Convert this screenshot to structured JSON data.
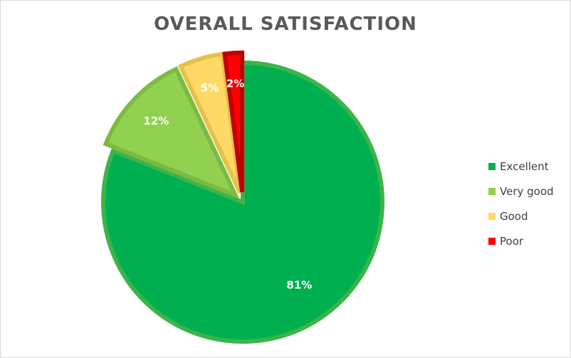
{
  "chart_data": {
    "type": "pie",
    "title": "OVERALL SATISFACTION",
    "categories": [
      "Excellent",
      "Very good",
      "Good",
      "Poor"
    ],
    "values": [
      81,
      12,
      5,
      2
    ],
    "labels": [
      "81%",
      "12%",
      "5%",
      "2%"
    ],
    "colors": [
      "#00b050",
      "#92d050",
      "#ffd966",
      "#ff0000"
    ],
    "border_colors": [
      "#3cb44b",
      "#7cbb42",
      "#e6c24a",
      "#c00000"
    ],
    "exploded": [
      "Very good",
      "Good",
      "Poor"
    ],
    "legend_position": "right"
  }
}
